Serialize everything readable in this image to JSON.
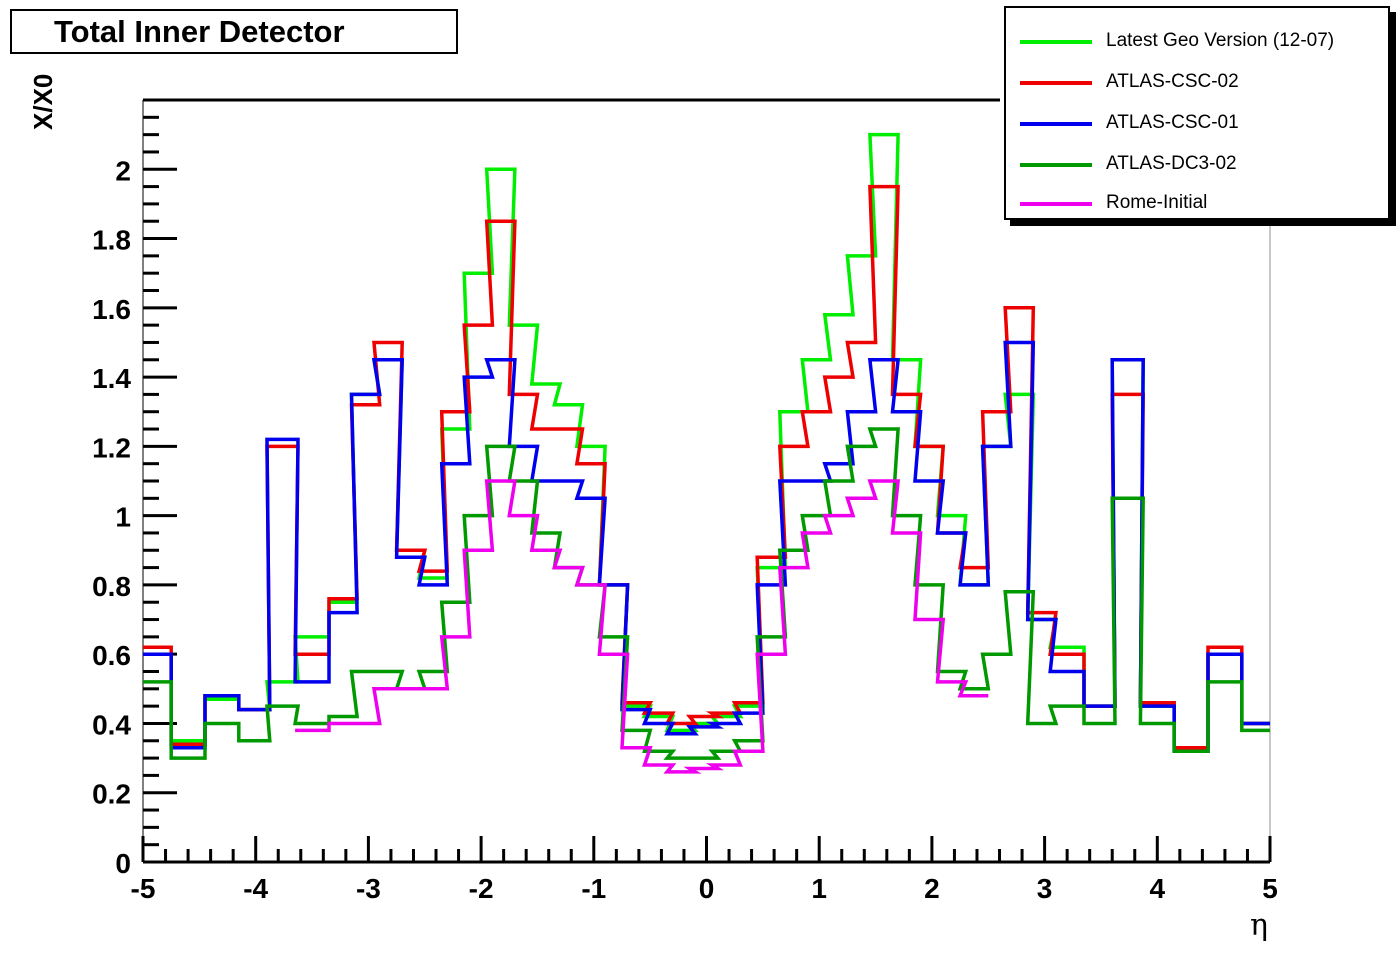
{
  "chart_data": {
    "type": "line",
    "title": "Total Inner Detector",
    "xlabel": "η",
    "ylabel": "X/X0",
    "xlim": [
      -5,
      5
    ],
    "ylim": [
      0,
      2.2
    ],
    "xticks": [
      -5,
      -4,
      -3,
      -2,
      -1,
      0,
      1,
      2,
      3,
      4,
      5
    ],
    "yticks": [
      0,
      0.2,
      0.4,
      0.6,
      0.8,
      1,
      1.2,
      1.4,
      1.6,
      1.8,
      2
    ],
    "xtick_labels": [
      "-5",
      "-4",
      "-3",
      "-2",
      "-1",
      "0",
      "1",
      "2",
      "3",
      "4",
      "5"
    ],
    "ytick_labels": [
      "0",
      "0.2",
      "0.4",
      "0.6",
      "0.8",
      "1",
      "1.2",
      "1.4",
      "1.6",
      "1.8",
      "2"
    ],
    "x": [
      -4.9,
      -4.6,
      -4.3,
      -4.0,
      -3.75,
      -3.5,
      -3.2,
      -3.0,
      -2.8,
      -2.6,
      -2.4,
      -2.2,
      -2.0,
      -1.8,
      -1.6,
      -1.4,
      -1.2,
      -1.0,
      -0.8,
      -0.6,
      -0.4,
      -0.2,
      0.0,
      0.2,
      0.4,
      0.6,
      0.8,
      1.0,
      1.2,
      1.4,
      1.6,
      1.8,
      2.0,
      2.2,
      2.4,
      2.6,
      2.8,
      3.0,
      3.2,
      3.5,
      3.75,
      4.0,
      4.3,
      4.6,
      4.9
    ],
    "series": [
      {
        "name": "Latest Geo Version (12-07)",
        "color": "#00ee00",
        "values": [
          0.6,
          0.35,
          0.47,
          0.44,
          0.52,
          0.65,
          0.75,
          1.35,
          1.45,
          0.9,
          0.82,
          1.25,
          1.7,
          2.0,
          1.55,
          1.38,
          1.32,
          1.2,
          0.8,
          0.45,
          0.42,
          0.38,
          0.4,
          0.42,
          0.45,
          0.85,
          1.3,
          1.45,
          1.58,
          1.75,
          2.1,
          1.45,
          1.2,
          1.0,
          0.8,
          1.2,
          1.35,
          0.7,
          0.62,
          0.45,
          1.45,
          0.45,
          0.33,
          0.6,
          0.4
        ]
      },
      {
        "name": "ATLAS-CSC-02",
        "color": "#ee0000",
        "values": [
          0.62,
          0.34,
          0.48,
          0.44,
          1.2,
          0.6,
          0.76,
          1.32,
          1.5,
          0.9,
          0.84,
          1.3,
          1.55,
          1.85,
          1.35,
          1.25,
          1.25,
          1.15,
          0.8,
          0.46,
          0.43,
          0.4,
          0.42,
          0.43,
          0.46,
          0.88,
          1.2,
          1.3,
          1.4,
          1.5,
          1.95,
          1.35,
          1.2,
          0.95,
          0.85,
          1.3,
          1.6,
          0.72,
          0.6,
          0.45,
          1.35,
          0.46,
          0.33,
          0.62,
          0.4
        ]
      },
      {
        "name": "ATLAS-CSC-01",
        "color": "#0000ee",
        "values": [
          0.6,
          0.33,
          0.48,
          0.44,
          1.22,
          0.52,
          0.72,
          1.35,
          1.45,
          0.88,
          0.8,
          1.15,
          1.4,
          1.45,
          1.2,
          1.1,
          1.1,
          1.05,
          0.8,
          0.44,
          0.4,
          0.37,
          0.39,
          0.4,
          0.43,
          0.8,
          1.1,
          1.1,
          1.15,
          1.3,
          1.45,
          1.3,
          1.1,
          0.95,
          0.8,
          1.2,
          1.5,
          0.7,
          0.55,
          0.45,
          1.45,
          0.45,
          0.32,
          0.6,
          0.4
        ]
      },
      {
        "name": "ATLAS-DC3-02",
        "color": "#009900",
        "values": [
          0.52,
          0.3,
          0.4,
          0.35,
          0.45,
          0.4,
          0.42,
          0.55,
          0.55,
          0.5,
          0.55,
          0.75,
          1.0,
          1.2,
          1.1,
          0.95,
          0.85,
          0.8,
          0.65,
          0.38,
          0.32,
          0.3,
          0.3,
          0.32,
          0.35,
          0.65,
          0.9,
          1.0,
          1.1,
          1.2,
          1.25,
          1.0,
          0.8,
          0.55,
          0.5,
          0.6,
          0.78,
          0.4,
          0.45,
          0.4,
          1.05,
          0.4,
          0.32,
          0.52,
          0.38
        ]
      },
      {
        "name": "Rome-Initial",
        "color": "#ee00ee",
        "values": [
          0.0,
          0.0,
          0.0,
          0.0,
          0.0,
          0.38,
          0.4,
          0.4,
          0.5,
          0.5,
          0.5,
          0.65,
          0.9,
          1.1,
          1.0,
          0.9,
          0.85,
          0.8,
          0.6,
          0.33,
          0.28,
          0.26,
          0.27,
          0.28,
          0.32,
          0.6,
          0.85,
          0.95,
          1.0,
          1.05,
          1.1,
          0.95,
          0.7,
          0.52,
          0.48,
          0.0,
          0.0,
          0.0,
          0.0,
          0.0,
          0.0,
          0.0,
          0.0,
          0.0,
          0.0
        ]
      }
    ],
    "legend": "top-right",
    "grid": false
  }
}
